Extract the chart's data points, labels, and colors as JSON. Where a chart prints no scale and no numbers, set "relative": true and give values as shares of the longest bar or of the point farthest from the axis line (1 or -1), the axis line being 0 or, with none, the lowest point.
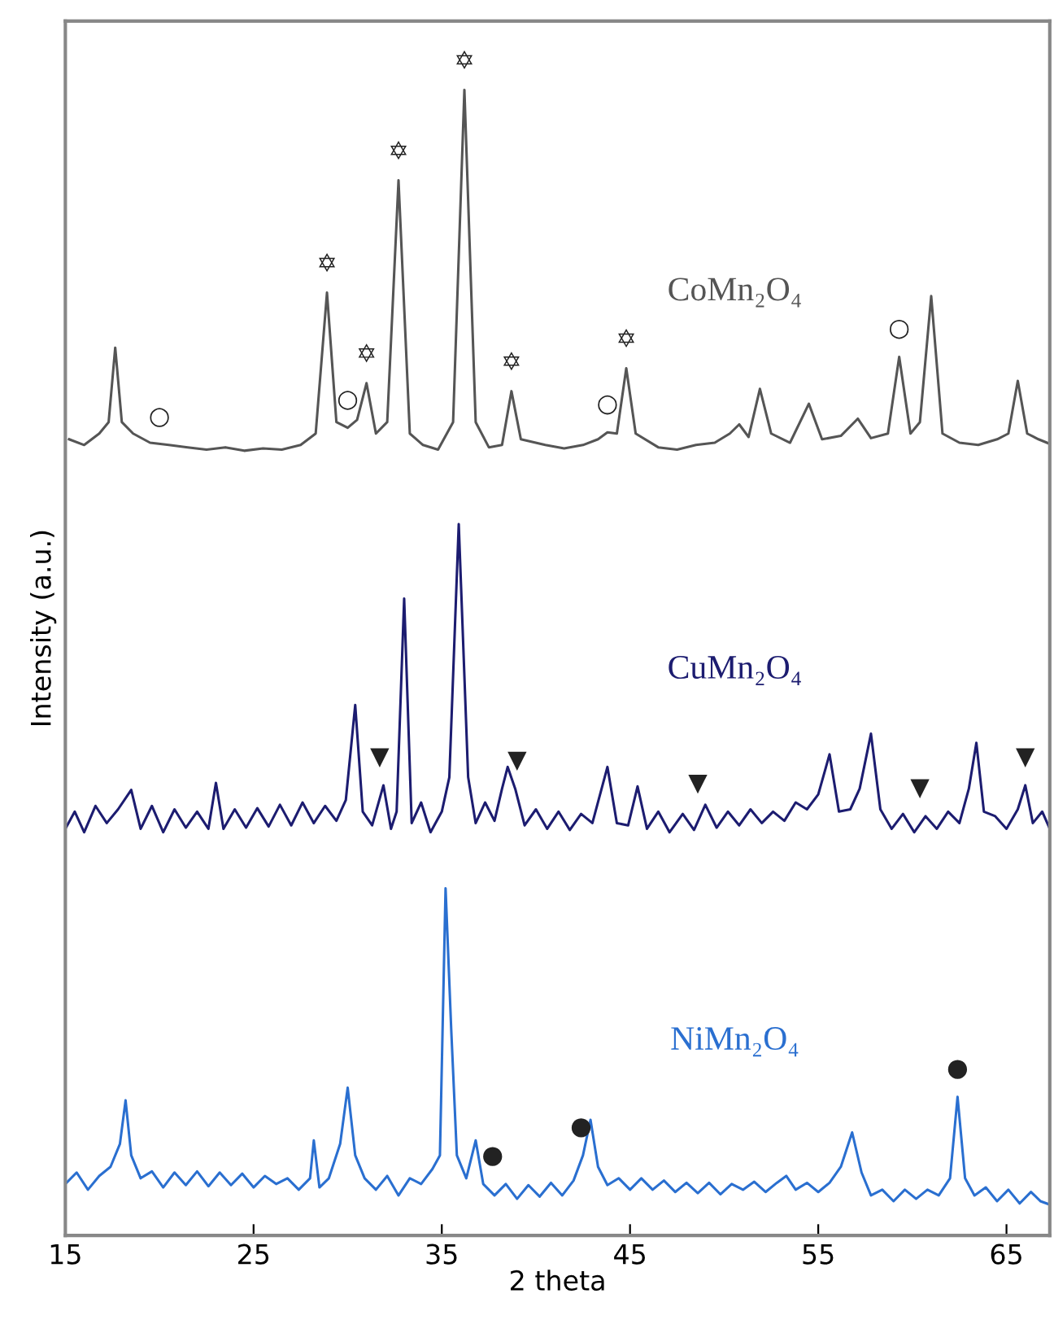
{
  "chart_data": {
    "type": "line",
    "relative": true,
    "xlabel": "2 theta",
    "ylabel": "Intensity (a.u.)",
    "xlim": [
      15,
      67.3
    ],
    "xticks": [
      15,
      25,
      35,
      45,
      55,
      65
    ],
    "grid": false,
    "marker": "none",
    "line_style": "solid",
    "series": [
      {
        "name": "CoMn₂O₄",
        "color": "#555555",
        "x": [
          15.2,
          16,
          16.8,
          17.3,
          17.65,
          18.0,
          18.6,
          19.5,
          20.5,
          21.5,
          22.5,
          23.5,
          24.5,
          25.5,
          26.5,
          27.5,
          28.3,
          28.9,
          29.4,
          30.0,
          30.5,
          31.0,
          31.5,
          32.1,
          32.7,
          33.3,
          34.0,
          34.8,
          35.6,
          36.2,
          36.8,
          37.5,
          38.2,
          38.7,
          39.2,
          40.5,
          41.5,
          42.5,
          43.3,
          43.8,
          44.3,
          44.8,
          45.3,
          46.5,
          47.5,
          48.5,
          49.5,
          50.3,
          50.8,
          51.3,
          51.9,
          52.5,
          53.5,
          54.5,
          55.2,
          56.2,
          57.1,
          57.8,
          58.7,
          59.3,
          59.9,
          60.4,
          61.0,
          61.6,
          62.5,
          63.5,
          64.5,
          65.1,
          65.6,
          66.1,
          66.7,
          67.3
        ],
        "values": [
          0.695,
          0.69,
          0.7,
          0.71,
          0.775,
          0.71,
          0.7,
          0.692,
          0.69,
          0.688,
          0.686,
          0.688,
          0.685,
          0.687,
          0.686,
          0.69,
          0.7,
          0.823,
          0.71,
          0.705,
          0.712,
          0.744,
          0.7,
          0.71,
          0.921,
          0.7,
          0.69,
          0.686,
          0.71,
          1.0,
          0.71,
          0.688,
          0.69,
          0.737,
          0.695,
          0.69,
          0.687,
          0.69,
          0.695,
          0.701,
          0.7,
          0.757,
          0.7,
          0.688,
          0.686,
          0.69,
          0.692,
          0.7,
          0.708,
          0.697,
          0.739,
          0.7,
          0.692,
          0.726,
          0.695,
          0.698,
          0.713,
          0.696,
          0.7,
          0.767,
          0.7,
          0.71,
          0.82,
          0.7,
          0.692,
          0.69,
          0.695,
          0.7,
          0.746,
          0.7,
          0.695,
          0.691
        ]
      },
      {
        "name": "CuMn₂O₄",
        "color": "#1c1c70",
        "x": [
          15,
          15.5,
          16,
          16.6,
          17.2,
          17.8,
          18.5,
          19.0,
          19.6,
          20.2,
          20.8,
          21.4,
          22.0,
          22.6,
          23.0,
          23.4,
          24.0,
          24.6,
          25.2,
          25.8,
          26.4,
          27.0,
          27.6,
          28.2,
          28.8,
          29.4,
          29.9,
          30.4,
          30.8,
          31.3,
          31.9,
          32.3,
          32.6,
          33.0,
          33.4,
          33.9,
          34.4,
          35.0,
          35.4,
          35.9,
          36.4,
          36.8,
          37.3,
          37.8,
          38.2,
          38.5,
          38.9,
          39.4,
          40.0,
          40.6,
          41.2,
          41.8,
          42.4,
          43.0,
          43.8,
          44.3,
          44.9,
          45.4,
          45.9,
          46.5,
          47.1,
          47.8,
          48.4,
          49.0,
          49.6,
          50.2,
          50.8,
          51.4,
          52.0,
          52.6,
          53.2,
          53.8,
          54.4,
          55.0,
          55.6,
          56.1,
          56.7,
          57.2,
          57.8,
          58.3,
          58.9,
          59.5,
          60.1,
          60.7,
          61.3,
          61.9,
          62.5,
          63.0,
          63.4,
          63.8,
          64.4,
          65.0,
          65.6,
          66.0,
          66.4,
          66.9,
          67.3
        ],
        "values": [
          0.355,
          0.37,
          0.352,
          0.375,
          0.36,
          0.372,
          0.389,
          0.355,
          0.375,
          0.352,
          0.372,
          0.356,
          0.37,
          0.355,
          0.395,
          0.355,
          0.372,
          0.356,
          0.373,
          0.357,
          0.376,
          0.358,
          0.378,
          0.36,
          0.375,
          0.362,
          0.38,
          0.463,
          0.37,
          0.358,
          0.393,
          0.355,
          0.37,
          0.556,
          0.36,
          0.378,
          0.352,
          0.37,
          0.4,
          0.621,
          0.4,
          0.36,
          0.378,
          0.362,
          0.39,
          0.409,
          0.39,
          0.358,
          0.372,
          0.355,
          0.37,
          0.354,
          0.368,
          0.36,
          0.409,
          0.36,
          0.358,
          0.392,
          0.355,
          0.37,
          0.352,
          0.368,
          0.354,
          0.376,
          0.356,
          0.37,
          0.358,
          0.372,
          0.36,
          0.37,
          0.362,
          0.378,
          0.372,
          0.385,
          0.42,
          0.37,
          0.372,
          0.39,
          0.438,
          0.372,
          0.355,
          0.368,
          0.352,
          0.366,
          0.355,
          0.37,
          0.36,
          0.39,
          0.43,
          0.37,
          0.366,
          0.355,
          0.372,
          0.393,
          0.36,
          0.37,
          0.355
        ]
      },
      {
        "name": "NiMn₂O₄",
        "color": "#2a6fd0",
        "x": [
          15,
          15.6,
          16.2,
          16.8,
          17.4,
          17.9,
          18.2,
          18.5,
          19.0,
          19.6,
          20.2,
          20.8,
          21.4,
          22.0,
          22.6,
          23.2,
          23.8,
          24.4,
          25.0,
          25.6,
          26.2,
          26.8,
          27.4,
          28.0,
          28.2,
          28.5,
          29.0,
          29.6,
          30.0,
          30.4,
          30.9,
          31.5,
          32.1,
          32.7,
          33.3,
          33.9,
          34.5,
          34.9,
          35.2,
          35.5,
          35.8,
          36.3,
          36.8,
          37.2,
          37.8,
          38.4,
          39.0,
          39.6,
          40.2,
          40.8,
          41.4,
          42.0,
          42.5,
          42.9,
          43.3,
          43.8,
          44.4,
          45.0,
          45.6,
          46.2,
          46.8,
          47.4,
          48.0,
          48.6,
          49.2,
          49.8,
          50.4,
          51.0,
          51.6,
          52.2,
          52.8,
          53.3,
          53.8,
          54.4,
          55.0,
          55.6,
          56.2,
          56.8,
          57.3,
          57.8,
          58.4,
          59.0,
          59.6,
          60.2,
          60.8,
          61.4,
          62.0,
          62.4,
          62.8,
          63.3,
          63.9,
          64.5,
          65.1,
          65.7,
          66.3,
          66.8,
          67.3
        ],
        "values": [
          0.045,
          0.055,
          0.04,
          0.052,
          0.06,
          0.08,
          0.118,
          0.07,
          0.05,
          0.056,
          0.042,
          0.055,
          0.044,
          0.056,
          0.043,
          0.055,
          0.044,
          0.054,
          0.042,
          0.052,
          0.045,
          0.05,
          0.04,
          0.05,
          0.083,
          0.042,
          0.05,
          0.08,
          0.129,
          0.07,
          0.05,
          0.04,
          0.052,
          0.035,
          0.05,
          0.045,
          0.058,
          0.07,
          0.303,
          0.18,
          0.07,
          0.05,
          0.083,
          0.045,
          0.035,
          0.045,
          0.032,
          0.044,
          0.034,
          0.046,
          0.035,
          0.048,
          0.07,
          0.101,
          0.06,
          0.044,
          0.05,
          0.04,
          0.05,
          0.04,
          0.048,
          0.038,
          0.046,
          0.037,
          0.046,
          0.036,
          0.045,
          0.04,
          0.047,
          0.038,
          0.046,
          0.052,
          0.04,
          0.046,
          0.038,
          0.046,
          0.06,
          0.09,
          0.055,
          0.035,
          0.04,
          0.03,
          0.04,
          0.032,
          0.04,
          0.035,
          0.05,
          0.121,
          0.05,
          0.035,
          0.042,
          0.03,
          0.04,
          0.028,
          0.038,
          0.03,
          0.027
        ]
      }
    ],
    "annotations": [
      {
        "text": "✡",
        "x": 28.9,
        "y": 0.823
      },
      {
        "text": "✡",
        "x": 31.0,
        "y": 0.744
      },
      {
        "text": "✡",
        "x": 32.7,
        "y": 0.921
      },
      {
        "text": "✡",
        "x": 36.2,
        "y": 1.0
      },
      {
        "text": "✡",
        "x": 38.7,
        "y": 0.737
      },
      {
        "text": "✡",
        "x": 44.8,
        "y": 0.757
      },
      {
        "text": "○",
        "x": 20.0,
        "y": 0.69
      },
      {
        "text": "○",
        "x": 30.0,
        "y": 0.705
      },
      {
        "text": "○",
        "x": 43.8,
        "y": 0.701
      },
      {
        "text": "○",
        "x": 59.3,
        "y": 0.767
      },
      {
        "text": "▼",
        "x": 31.7,
        "y": 0.393
      },
      {
        "text": "▼",
        "x": 39.0,
        "y": 0.39
      },
      {
        "text": "▼",
        "x": 48.6,
        "y": 0.37
      },
      {
        "text": "▼",
        "x": 60.4,
        "y": 0.366
      },
      {
        "text": "▼",
        "x": 66.0,
        "y": 0.393
      },
      {
        "text": "●",
        "x": 37.7,
        "y": 0.045
      },
      {
        "text": "●",
        "x": 42.4,
        "y": 0.07
      },
      {
        "text": "●",
        "x": 62.4,
        "y": 0.121
      }
    ]
  }
}
